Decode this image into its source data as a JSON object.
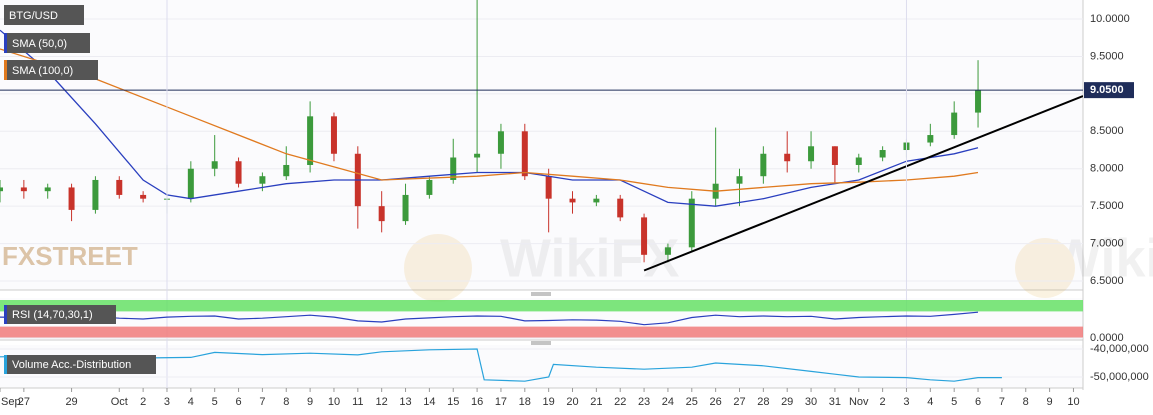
{
  "chart_data": [
    {
      "type": "candlestick",
      "title": "BTG/USD",
      "x": [
        0,
        1,
        2,
        3,
        4,
        5,
        6,
        7,
        8,
        9,
        10,
        11,
        12,
        13,
        14,
        15,
        16,
        17,
        18,
        19,
        20,
        21,
        22,
        23,
        24,
        25,
        26,
        27,
        28,
        29,
        30,
        31,
        32,
        33,
        34,
        35,
        36,
        37,
        38,
        39,
        40,
        41
      ],
      "open": [
        7.7,
        7.75,
        7.7,
        7.75,
        7.45,
        7.85,
        7.65,
        7.6,
        7.6,
        8.0,
        8.1,
        7.8,
        7.9,
        8.05,
        8.7,
        8.2,
        7.5,
        7.3,
        7.65,
        7.85,
        8.15,
        8.2,
        8.5,
        7.9,
        7.6,
        7.55,
        7.6,
        7.35,
        6.85,
        6.95,
        7.6,
        7.8,
        7.9,
        8.2,
        8.1,
        8.3,
        8.05,
        8.15,
        8.25,
        8.35,
        8.45,
        8.75
      ],
      "high": [
        7.85,
        7.85,
        7.8,
        7.8,
        7.9,
        7.9,
        7.7,
        8.05,
        8.1,
        8.45,
        8.15,
        7.95,
        8.3,
        8.9,
        8.75,
        8.3,
        7.7,
        7.8,
        7.9,
        8.4,
        10.3,
        8.6,
        8.6,
        8.0,
        7.7,
        7.65,
        7.65,
        7.4,
        7.0,
        7.7,
        8.55,
        8.0,
        8.3,
        8.5,
        8.5,
        8.3,
        8.2,
        8.3,
        8.4,
        8.6,
        8.9,
        9.45
      ],
      "low": [
        7.55,
        7.6,
        7.6,
        7.3,
        7.4,
        7.6,
        7.55,
        7.4,
        7.55,
        7.9,
        7.75,
        7.7,
        7.85,
        7.95,
        8.1,
        7.2,
        7.15,
        7.25,
        7.6,
        7.8,
        7.95,
        8.0,
        7.85,
        7.15,
        7.4,
        7.5,
        7.3,
        6.75,
        6.75,
        6.9,
        7.5,
        7.5,
        7.8,
        7.95,
        8.0,
        7.8,
        7.95,
        8.1,
        8.15,
        8.3,
        8.4,
        8.55
      ],
      "close": [
        7.75,
        7.7,
        7.75,
        7.45,
        7.85,
        7.65,
        7.6,
        7.6,
        8.0,
        8.1,
        7.8,
        7.9,
        8.05,
        8.7,
        8.2,
        7.5,
        7.3,
        7.65,
        7.85,
        8.15,
        8.2,
        8.5,
        7.9,
        7.6,
        7.55,
        7.6,
        7.35,
        6.85,
        6.95,
        7.6,
        7.8,
        7.9,
        8.2,
        8.1,
        8.3,
        8.05,
        8.15,
        8.25,
        8.35,
        8.45,
        8.75,
        9.05
      ],
      "up_color": "#3c9a3c",
      "down_color": "#c8332b",
      "series": [
        {
          "name": "SMA (50,0)",
          "color": "#2a3fbf",
          "x": [
            0,
            2,
            4,
            6,
            7,
            8,
            10,
            12,
            14,
            16,
            18,
            20,
            22,
            24,
            26,
            28,
            30,
            32,
            34,
            36,
            38,
            40,
            41
          ],
          "values": [
            9.85,
            9.3,
            8.6,
            7.85,
            7.65,
            7.6,
            7.7,
            7.8,
            7.85,
            7.85,
            7.9,
            7.95,
            7.95,
            7.85,
            7.85,
            7.55,
            7.5,
            7.6,
            7.75,
            7.85,
            8.1,
            8.2,
            8.28
          ]
        },
        {
          "name": "SMA (100,0)",
          "color": "#e07a1f",
          "x": [
            0,
            4,
            8,
            12,
            16,
            20,
            22,
            24,
            26,
            28,
            30,
            32,
            34,
            36,
            38,
            40,
            41
          ],
          "values": [
            9.6,
            9.2,
            8.7,
            8.2,
            7.85,
            7.9,
            7.95,
            7.9,
            7.85,
            7.75,
            7.7,
            7.75,
            7.8,
            7.82,
            7.85,
            7.9,
            7.95
          ]
        }
      ],
      "trendline": {
        "x": [
          27,
          45.4
        ],
        "values": [
          6.64,
          8.97
        ],
        "color": "#000000"
      },
      "last_price": {
        "value": 9.05,
        "label": "9.0500"
      },
      "ylim": [
        6.38,
        10.254
      ],
      "yticks": [
        {
          "value": 6.5,
          "label": "6.5000"
        },
        {
          "value": 7,
          "label": "7.0000"
        },
        {
          "value": 7.5,
          "label": "7.5000"
        },
        {
          "value": 8,
          "label": "8.0000"
        },
        {
          "value": 8.5,
          "label": "8.5000"
        },
        {
          "value": 9,
          "label": "9.0000"
        },
        {
          "value": 9.5,
          "label": "9.5000"
        },
        {
          "value": 10,
          "label": "10.0000"
        }
      ],
      "xlim": [
        0,
        45.4
      ],
      "xticks": [
        {
          "value": 0,
          "label": "Sep"
        },
        {
          "value": 1,
          "label": "27"
        },
        {
          "value": 3,
          "label": "29"
        },
        {
          "value": 5,
          "label": "Oct"
        },
        {
          "value": 6,
          "label": "2"
        },
        {
          "value": 7,
          "label": "3"
        },
        {
          "value": 8,
          "label": "4"
        },
        {
          "value": 9,
          "label": "5"
        },
        {
          "value": 10,
          "label": "6"
        },
        {
          "value": 11,
          "label": "7"
        },
        {
          "value": 12,
          "label": "8"
        },
        {
          "value": 13,
          "label": "9"
        },
        {
          "value": 14,
          "label": "10"
        },
        {
          "value": 15,
          "label": "11"
        },
        {
          "value": 16,
          "label": "12"
        },
        {
          "value": 17,
          "label": "13"
        },
        {
          "value": 18,
          "label": "14"
        },
        {
          "value": 19,
          "label": "15"
        },
        {
          "value": 20,
          "label": "16"
        },
        {
          "value": 21,
          "label": "17"
        },
        {
          "value": 22,
          "label": "18"
        },
        {
          "value": 23,
          "label": "19"
        },
        {
          "value": 24,
          "label": "20"
        },
        {
          "value": 25,
          "label": "21"
        },
        {
          "value": 26,
          "label": "22"
        },
        {
          "value": 27,
          "label": "23"
        },
        {
          "value": 28,
          "label": "24"
        },
        {
          "value": 29,
          "label": "25"
        },
        {
          "value": 30,
          "label": "26"
        },
        {
          "value": 31,
          "label": "27"
        },
        {
          "value": 32,
          "label": "28"
        },
        {
          "value": 33,
          "label": "29"
        },
        {
          "value": 34,
          "label": "30"
        },
        {
          "value": 35,
          "label": "31"
        },
        {
          "value": 36,
          "label": "Nov"
        },
        {
          "value": 37,
          "label": "2"
        },
        {
          "value": 38,
          "label": "3"
        },
        {
          "value": 39,
          "label": "4"
        },
        {
          "value": 40,
          "label": "5"
        },
        {
          "value": 41,
          "label": "6"
        },
        {
          "value": 42,
          "label": "7"
        },
        {
          "value": 43,
          "label": "8"
        },
        {
          "value": 44,
          "label": "9"
        },
        {
          "value": 45,
          "label": "10"
        }
      ],
      "logo": "FXSTREET",
      "watermark": "WikiFX"
    },
    {
      "type": "line",
      "title": "RSI (14,70,30,1)",
      "series": [
        {
          "color": "#2a3fbf",
          "x": [
            0,
            1,
            2,
            3,
            4,
            5,
            6,
            7,
            8,
            9,
            10,
            11,
            12,
            13,
            14,
            15,
            16,
            17,
            18,
            19,
            20,
            21,
            22,
            23,
            24,
            25,
            26,
            27,
            28,
            29,
            30,
            31,
            32,
            33,
            34,
            35,
            36,
            37,
            38,
            39,
            40,
            41
          ],
          "values": [
            55,
            54,
            52,
            50,
            56,
            52,
            50,
            55,
            57,
            58,
            50,
            52,
            56,
            60,
            55,
            45,
            42,
            50,
            53,
            56,
            58,
            57,
            45,
            46,
            48,
            47,
            44,
            35,
            40,
            54,
            60,
            56,
            58,
            56,
            57,
            50,
            54,
            56,
            58,
            57,
            62,
            68
          ]
        }
      ],
      "bands": [
        {
          "from": 70,
          "to": 100,
          "color": "#66e066"
        },
        {
          "from": 0,
          "to": 30,
          "color": "#f07a7a"
        }
      ],
      "ylim": [
        0,
        100
      ],
      "yticks": [
        {
          "value": 0,
          "label": "0.0000"
        }
      ]
    },
    {
      "type": "line",
      "title": "Volume Acc.-Distribution",
      "series": [
        {
          "color": "#29a3dc",
          "x": [
            0,
            3,
            6,
            8,
            9,
            11,
            13,
            15,
            16,
            18,
            20,
            20.3,
            22,
            23,
            23.2,
            25,
            27,
            29,
            30,
            32,
            34,
            35,
            36,
            38,
            39,
            40,
            41,
            42
          ],
          "values": [
            -42800000,
            -42500000,
            -43200000,
            -43000000,
            -41200000,
            -42000000,
            -41500000,
            -42100000,
            -41000000,
            -40300000,
            -40000000,
            -51000000,
            -51500000,
            -50000000,
            -45500000,
            -46500000,
            -47200000,
            -46500000,
            -45000000,
            -46000000,
            -48000000,
            -49000000,
            -50000000,
            -50200000,
            -51000000,
            -51500000,
            -50200000,
            -50200000
          ]
        }
      ],
      "ylim": [
        -53930000,
        -38570000
      ],
      "yticks": [
        {
          "value": -40000000,
          "label": "-40,000,000"
        },
        {
          "value": -50000000,
          "label": "-50,000,000"
        }
      ]
    }
  ]
}
